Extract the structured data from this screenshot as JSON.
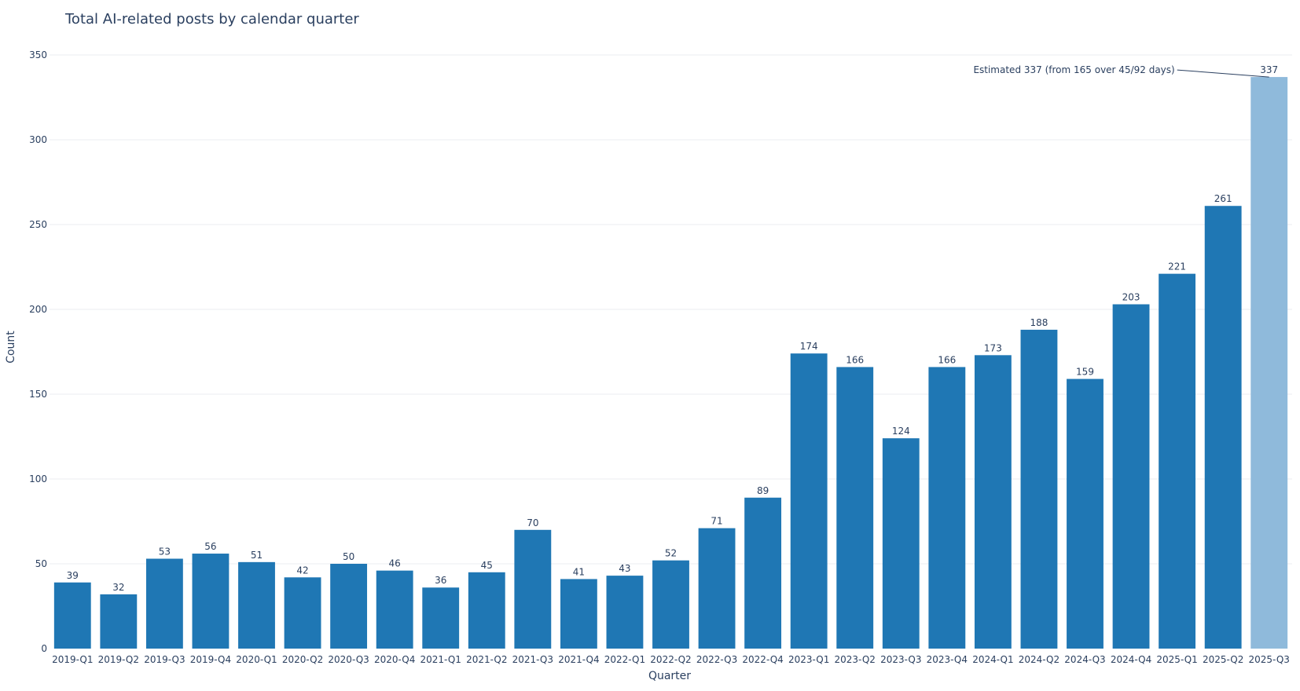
{
  "chart_data": {
    "type": "bar",
    "title": "Total AI-related posts by calendar quarter",
    "xlabel": "Quarter",
    "ylabel": "Count",
    "ylim": [
      0,
      350
    ],
    "yticks": [
      0,
      50,
      100,
      150,
      200,
      250,
      300,
      350
    ],
    "grid": true,
    "categories": [
      "2019-Q1",
      "2019-Q2",
      "2019-Q3",
      "2019-Q4",
      "2020-Q1",
      "2020-Q2",
      "2020-Q3",
      "2020-Q4",
      "2021-Q1",
      "2021-Q2",
      "2021-Q3",
      "2021-Q4",
      "2022-Q1",
      "2022-Q2",
      "2022-Q3",
      "2022-Q4",
      "2023-Q1",
      "2023-Q2",
      "2023-Q3",
      "2023-Q4",
      "2024-Q1",
      "2024-Q2",
      "2024-Q3",
      "2024-Q4",
      "2025-Q1",
      "2025-Q2",
      "2025-Q3"
    ],
    "values": [
      39,
      32,
      53,
      56,
      51,
      42,
      50,
      46,
      36,
      45,
      70,
      41,
      43,
      52,
      71,
      89,
      174,
      166,
      124,
      166,
      173,
      188,
      159,
      203,
      221,
      261,
      337
    ],
    "estimated_index": 26,
    "colors": {
      "bar": "#1f77b4",
      "estimated_bar": "#8fbadb",
      "estimated_label": "#999999",
      "text": "#2a3f5f"
    },
    "annotation": {
      "text": "Estimated 337 (from 165 over 45/92 days)",
      "target_category": "2025-Q3",
      "target_value": 337
    }
  }
}
